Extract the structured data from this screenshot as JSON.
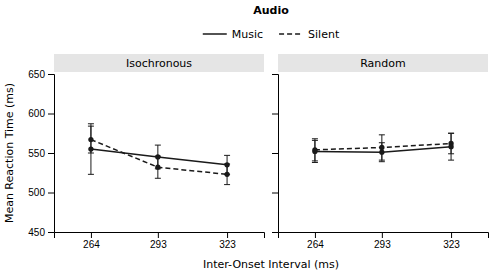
{
  "chart_data": [
    {
      "type": "line",
      "title": "Isochronous",
      "xlabel": "Inter-Onset Interval (ms)",
      "ylabel": "Mean Reaction Time (ms)",
      "legend_title": "Audio",
      "legend": "top",
      "grid": false,
      "x": [
        264,
        293,
        323
      ],
      "xlim": [
        248,
        339
      ],
      "xticks": [
        264,
        293,
        323
      ],
      "ylim": [
        450,
        650
      ],
      "yticks": [
        450,
        500,
        550,
        600,
        650
      ],
      "series": [
        {
          "name": "Music",
          "color": "#1a1a1a",
          "line_style": "solid",
          "marker": "circle",
          "values": [
            555,
            545,
            535
          ],
          "errors": [
            32,
            15,
            12
          ]
        },
        {
          "name": "Silent",
          "color": "#1a1a1a",
          "line_style": "dashed",
          "marker": "circle",
          "values": [
            567,
            532,
            523
          ],
          "errors": [
            17,
            14,
            13
          ]
        }
      ]
    },
    {
      "type": "line",
      "title": "Random",
      "grid": false,
      "tick_labels": "x",
      "x": [
        264,
        293,
        323
      ],
      "xlim": [
        248,
        339
      ],
      "xticks": [
        264,
        293,
        323
      ],
      "ylim": [
        450,
        650
      ],
      "yticks": [
        450,
        500,
        550,
        600,
        650
      ],
      "series": [
        {
          "name": "Music",
          "color": "#1a1a1a",
          "line_style": "solid",
          "marker": "circle",
          "values": [
            552,
            551,
            558
          ],
          "errors": [
            14,
            12,
            17
          ]
        },
        {
          "name": "Silent",
          "color": "#1a1a1a",
          "line_style": "dashed",
          "marker": "circle",
          "values": [
            554,
            557,
            562
          ],
          "errors": [
            14,
            16,
            13
          ]
        }
      ]
    }
  ]
}
